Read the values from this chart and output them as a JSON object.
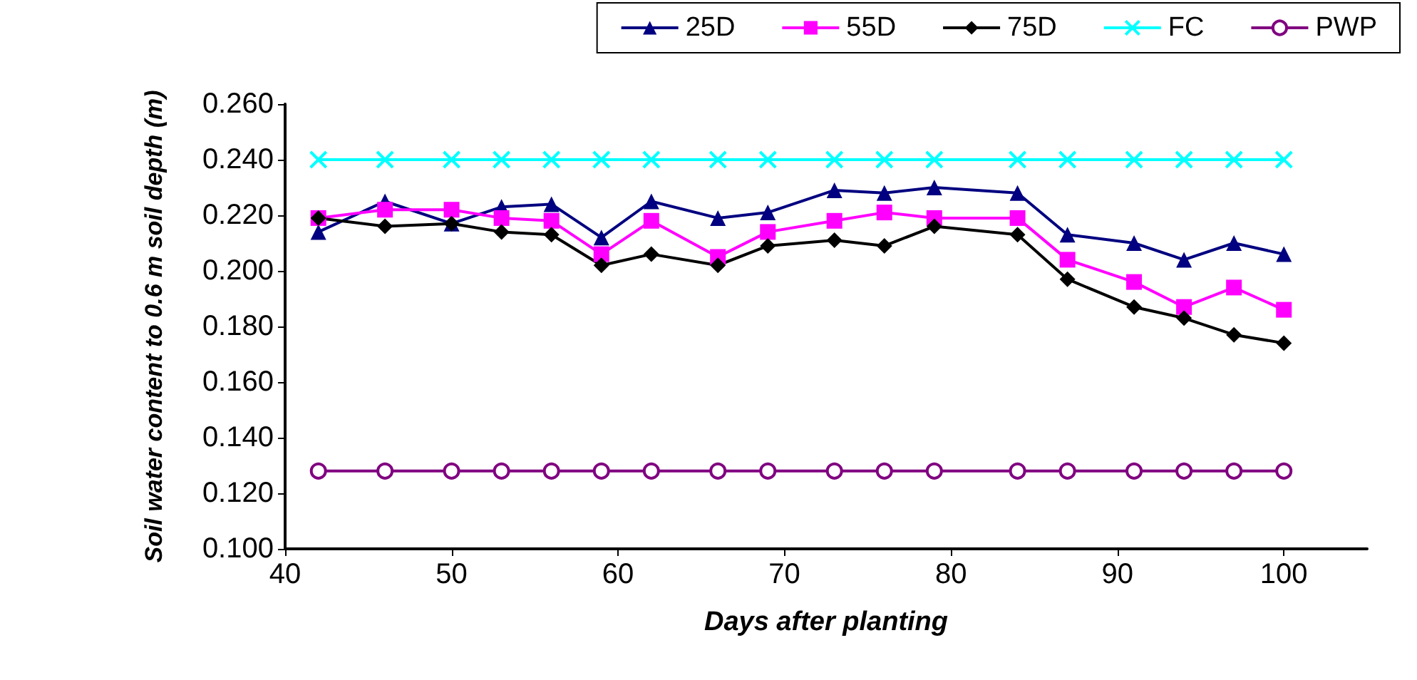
{
  "chart_data": {
    "type": "line",
    "xlabel": "Days after planting",
    "ylabel": "Soil water content to 0.6 m soil depth (m)",
    "x": [
      42,
      46,
      50,
      53,
      56,
      59,
      62,
      66,
      69,
      73,
      76,
      79,
      84,
      87,
      91,
      94,
      97,
      100
    ],
    "xlim": [
      40,
      105
    ],
    "xticks": [
      40,
      50,
      60,
      70,
      80,
      90,
      100
    ],
    "ylim": [
      0.1,
      0.26
    ],
    "yticks": [
      {
        "value": 0.1,
        "label": "0.100"
      },
      {
        "value": 0.12,
        "label": "0.120"
      },
      {
        "value": 0.14,
        "label": "0.140"
      },
      {
        "value": 0.16,
        "label": "0.160"
      },
      {
        "value": 0.18,
        "label": "0.180"
      },
      {
        "value": 0.2,
        "label": "0.200"
      },
      {
        "value": 0.22,
        "label": "0.220"
      },
      {
        "value": 0.24,
        "label": "0.240"
      },
      {
        "value": 0.26,
        "label": "0.260"
      }
    ],
    "grid": false,
    "legend": "top right",
    "series": [
      {
        "name": "25D",
        "color": "#000080",
        "marker": "triangle",
        "values": [
          0.214,
          0.225,
          0.217,
          0.223,
          0.224,
          0.212,
          0.225,
          0.219,
          0.221,
          0.229,
          0.228,
          0.23,
          0.228,
          0.213,
          0.21,
          0.204,
          0.21,
          0.206
        ]
      },
      {
        "name": "55D",
        "color": "#ff00ff",
        "marker": "square",
        "values": [
          0.219,
          0.222,
          0.222,
          0.219,
          0.218,
          0.206,
          0.218,
          0.205,
          0.214,
          0.218,
          0.221,
          0.219,
          0.219,
          0.204,
          0.196,
          0.187,
          0.194,
          0.186
        ]
      },
      {
        "name": "75D",
        "color": "#000000",
        "marker": "diamond",
        "values": [
          0.219,
          0.216,
          0.217,
          0.214,
          0.213,
          0.202,
          0.206,
          0.202,
          0.209,
          0.211,
          0.209,
          0.216,
          0.213,
          0.197,
          0.187,
          0.183,
          0.177,
          0.174
        ]
      },
      {
        "name": "FC",
        "color": "#00ffff",
        "marker": "cross",
        "values": [
          0.24,
          0.24,
          0.24,
          0.24,
          0.24,
          0.24,
          0.24,
          0.24,
          0.24,
          0.24,
          0.24,
          0.24,
          0.24,
          0.24,
          0.24,
          0.24,
          0.24,
          0.24
        ]
      },
      {
        "name": "PWP",
        "color": "#800080",
        "marker": "circle",
        "values": [
          0.128,
          0.128,
          0.128,
          0.128,
          0.128,
          0.128,
          0.128,
          0.128,
          0.128,
          0.128,
          0.128,
          0.128,
          0.128,
          0.128,
          0.128,
          0.128,
          0.128,
          0.128
        ]
      }
    ]
  }
}
